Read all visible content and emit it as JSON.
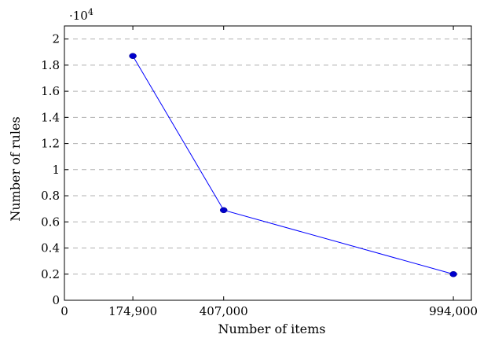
{
  "chart_data": {
    "type": "line",
    "title": "",
    "xlabel": "Number of items",
    "ylabel": "Number of rules",
    "y_multiplier_label": "·10",
    "y_multiplier_exponent": "4",
    "xlim": [
      0,
      1040000
    ],
    "ylim": [
      0,
      2.1
    ],
    "x_ticks": [
      0,
      174900,
      407000,
      994000
    ],
    "x_tick_labels": [
      "0",
      "174,900",
      "407,000",
      "994,000"
    ],
    "y_ticks": [
      0,
      0.2,
      0.4,
      0.6,
      0.8,
      1,
      1.2,
      1.4,
      1.6,
      1.8,
      2
    ],
    "y_tick_labels": [
      "0",
      "0.2",
      "0.4",
      "0.6",
      "0.8",
      "1",
      "1.2",
      "1.4",
      "1.6",
      "1.8",
      "2"
    ],
    "grid": "horizontal dashed",
    "series": [
      {
        "x": [
          174900,
          407000,
          994000
        ],
        "y": [
          1.87,
          0.69,
          0.2
        ],
        "color": "#0000ff",
        "marker": "circle"
      }
    ]
  }
}
